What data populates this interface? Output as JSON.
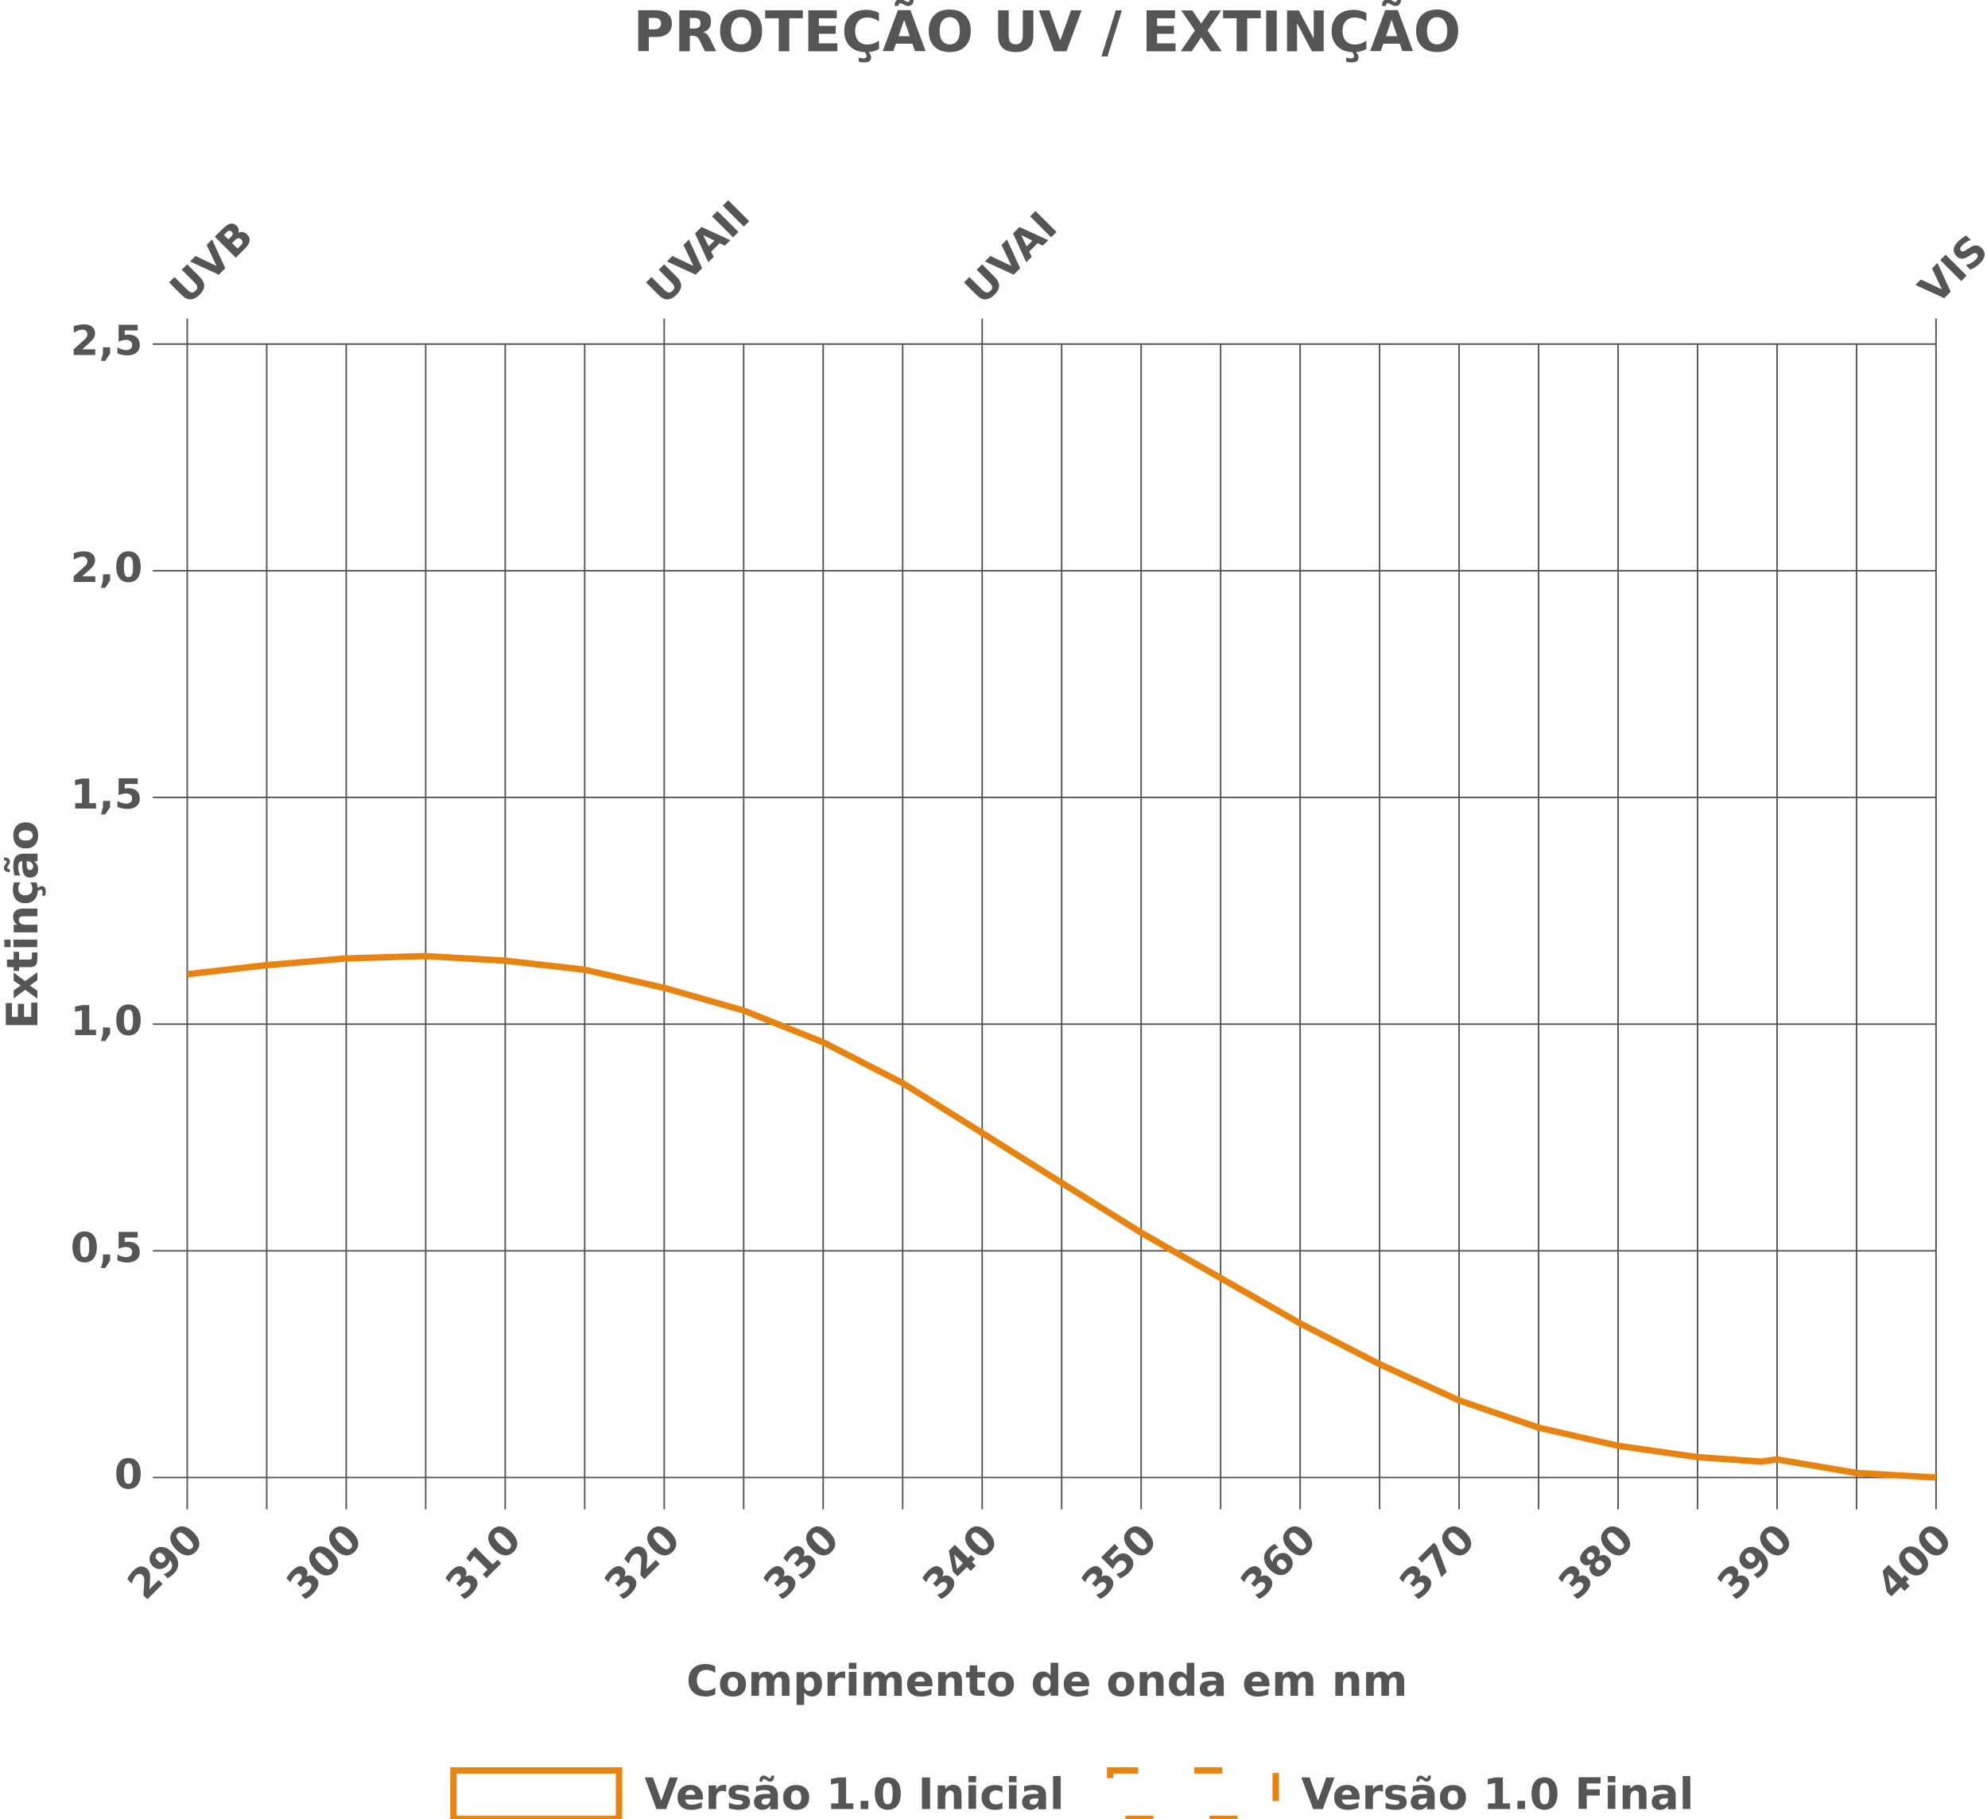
{
  "chart_data": {
    "type": "line",
    "title": "PROTEÇÃO UV / EXTINÇÃO",
    "x_label": "Comprimento de onda em nm",
    "y_label": "Extinção",
    "x": [
      290,
      295,
      300,
      305,
      310,
      315,
      320,
      325,
      330,
      335,
      340,
      345,
      350,
      355,
      360,
      365,
      370,
      375,
      380,
      385,
      389,
      390,
      395,
      400
    ],
    "series": [
      {
        "name": "Versão 1.0 Inicial",
        "color": "#e8830f",
        "style": "solid",
        "values": [
          1.11,
          1.13,
          1.145,
          1.15,
          1.14,
          1.12,
          1.08,
          1.03,
          0.96,
          0.87,
          0.76,
          0.65,
          0.54,
          0.44,
          0.34,
          0.25,
          0.17,
          0.11,
          0.07,
          0.045,
          0.035,
          0.04,
          0.01,
          0
        ]
      },
      {
        "name": "Versão 1.0 Final",
        "color": "#e8830f",
        "style": "dashed",
        "values": [
          null,
          null,
          null,
          null,
          null,
          null,
          null,
          null,
          null,
          null,
          null,
          null,
          null,
          null,
          null,
          null,
          null,
          null,
          null,
          null,
          null,
          null,
          null,
          null
        ]
      }
    ],
    "bands": [
      {
        "label": "UVB",
        "x": 290
      },
      {
        "label": "UVAII",
        "x": 320
      },
      {
        "label": "UVAI",
        "x": 340
      },
      {
        "label": "VIS",
        "x": 400
      }
    ],
    "xlim": [
      290,
      400
    ],
    "xticks": [
      290,
      300,
      310,
      320,
      330,
      340,
      350,
      360,
      370,
      380,
      390,
      400
    ],
    "ylim": [
      0,
      2.5
    ],
    "yticks": [
      0,
      {
        "value": 0.5,
        "label": "0,5"
      },
      {
        "value": 1,
        "label": "1,0"
      },
      {
        "value": 1.5,
        "label": "1,5"
      },
      {
        "value": 2,
        "label": "2,0"
      },
      {
        "value": 2.5,
        "label": "2,5"
      }
    ],
    "grid": true
  }
}
